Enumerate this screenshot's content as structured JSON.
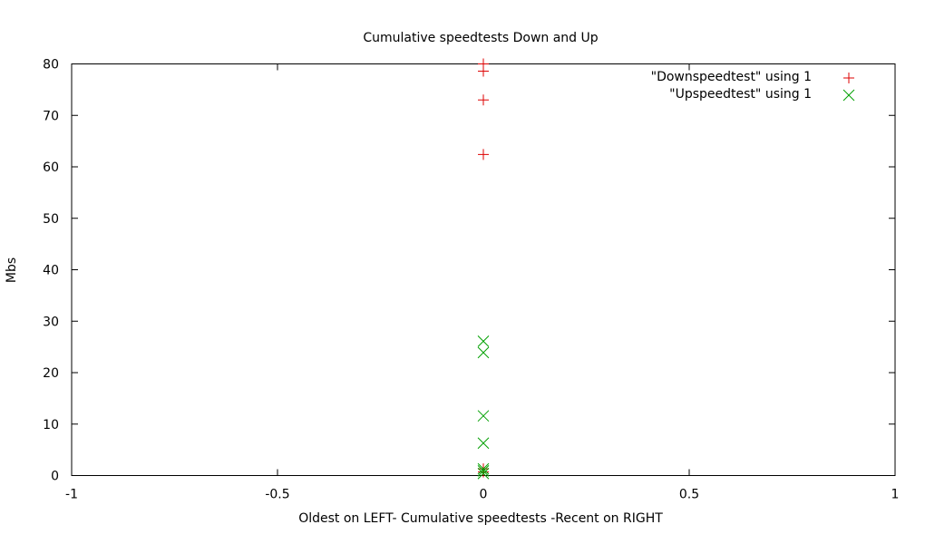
{
  "chart_data": {
    "type": "scatter",
    "title": "Cumulative speedtests Down and Up",
    "xlabel": "Oldest on LEFT- Cumulative speedtests -Recent on RIGHT",
    "ylabel": "Mbs",
    "xlim": [
      -1,
      1
    ],
    "ylim": [
      0,
      80
    ],
    "xticks": [
      -1,
      -0.5,
      0,
      0.5,
      1
    ],
    "xtick_labels": [
      "-1",
      "-0.5",
      "0",
      "0.5",
      "1"
    ],
    "yticks": [
      0,
      10,
      20,
      30,
      40,
      50,
      60,
      70,
      80
    ],
    "ytick_labels": [
      "0",
      "10",
      "20",
      "30",
      "40",
      "50",
      "60",
      "70",
      "80"
    ],
    "grid": false,
    "legend_position": "top-right",
    "series": [
      {
        "name": "\"Downspeedtest\" using 1",
        "marker": "plus",
        "color": "#dd0000",
        "x": [
          0,
          0,
          0,
          0,
          0,
          0
        ],
        "y": [
          80.0,
          78.6,
          73.0,
          62.4,
          1.3,
          0.7
        ]
      },
      {
        "name": "\"Upspeedtest\" using 1",
        "marker": "cross",
        "color": "#00a000",
        "x": [
          0,
          0,
          0,
          0,
          0,
          0,
          0
        ],
        "y": [
          26.1,
          23.9,
          11.6,
          6.3,
          1.3,
          0.9,
          0.4
        ]
      }
    ]
  }
}
